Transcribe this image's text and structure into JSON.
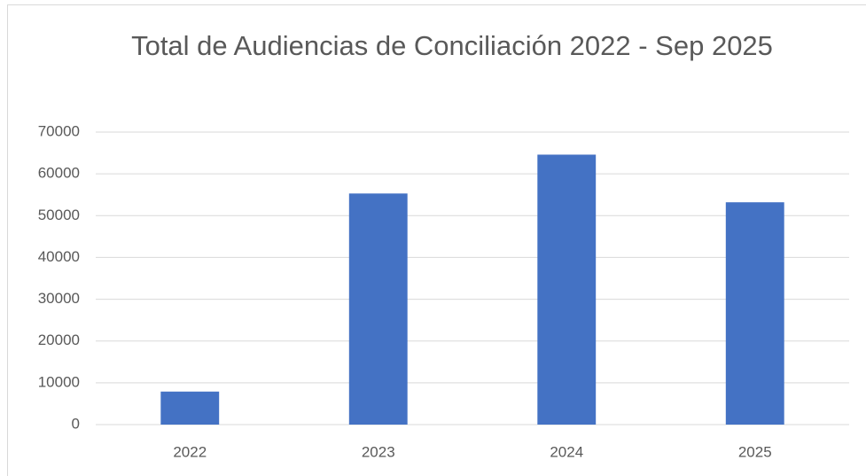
{
  "chart_data": {
    "type": "bar",
    "title": "Total de Audiencias de Conciliación 2022 - Sep 2025",
    "categories": [
      "2022",
      "2023",
      "2024",
      "2025"
    ],
    "values": [
      7900,
      55300,
      64600,
      53200
    ],
    "color": "#4472c4",
    "ylim": [
      0,
      70000
    ],
    "yticks": [
      0,
      10000,
      20000,
      30000,
      40000,
      50000,
      60000,
      70000
    ],
    "grid": true
  }
}
